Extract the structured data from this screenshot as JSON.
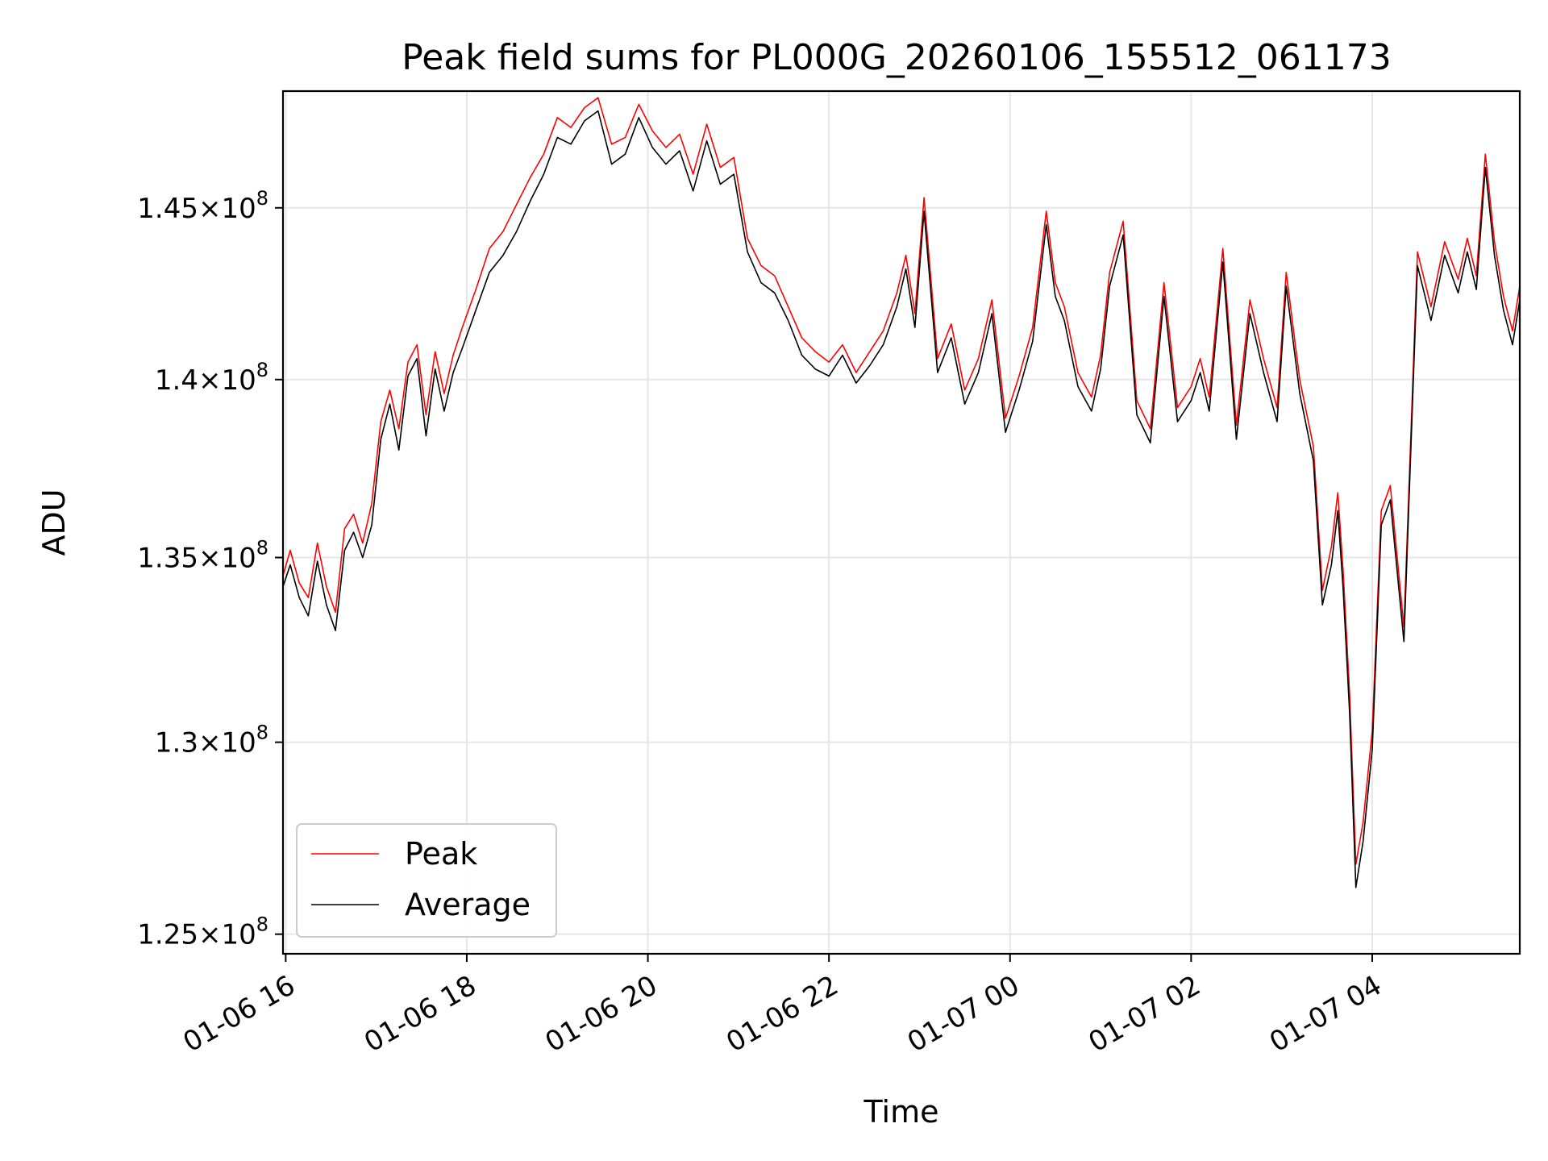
{
  "chart_data": {
    "type": "line",
    "title": "Peak field sums for PL000G_20260106_155512_061173",
    "xlabel": "Time",
    "ylabel": "ADU",
    "x_range_hours": [
      15.97,
      29.63
    ],
    "ylim": [
      124500000,
      148500000
    ],
    "y_scale": "log",
    "x_ticks": [
      {
        "hour": 16,
        "label": "01-06 16"
      },
      {
        "hour": 18,
        "label": "01-06 18"
      },
      {
        "hour": 20,
        "label": "01-06 20"
      },
      {
        "hour": 22,
        "label": "01-06 22"
      },
      {
        "hour": 24,
        "label": "01-07 00"
      },
      {
        "hour": 26,
        "label": "01-07 02"
      },
      {
        "hour": 28,
        "label": "01-07 04"
      }
    ],
    "y_ticks": [
      {
        "value": 125000000,
        "mantissa": "1.25",
        "exp": "8"
      },
      {
        "value": 130000000,
        "mantissa": "1.3",
        "exp": "8"
      },
      {
        "value": 135000000,
        "mantissa": "1.35",
        "exp": "8"
      },
      {
        "value": 140000000,
        "mantissa": "1.4",
        "exp": "8"
      },
      {
        "value": 145000000,
        "mantissa": "1.45",
        "exp": "8"
      }
    ],
    "grid": true,
    "legend_position": "lower-left",
    "series": [
      {
        "name": "Peak",
        "color": "#ff0000",
        "x_hours": [
          15.97,
          16.05,
          16.15,
          16.25,
          16.35,
          16.45,
          16.55,
          16.65,
          16.75,
          16.85,
          16.95,
          17.05,
          17.15,
          17.25,
          17.35,
          17.45,
          17.55,
          17.65,
          17.75,
          17.85,
          17.95,
          18.1,
          18.25,
          18.4,
          18.55,
          18.7,
          18.85,
          19.0,
          19.15,
          19.3,
          19.45,
          19.6,
          19.75,
          19.9,
          20.05,
          20.2,
          20.35,
          20.5,
          20.65,
          20.8,
          20.95,
          21.1,
          21.25,
          21.4,
          21.55,
          21.7,
          21.85,
          22.0,
          22.15,
          22.3,
          22.45,
          22.6,
          22.75,
          22.85,
          22.95,
          23.05,
          23.2,
          23.35,
          23.5,
          23.65,
          23.8,
          23.95,
          24.1,
          24.25,
          24.4,
          24.5,
          24.6,
          24.75,
          24.9,
          25.0,
          25.1,
          25.25,
          25.4,
          25.55,
          25.7,
          25.85,
          26.0,
          26.1,
          26.2,
          26.35,
          26.5,
          26.65,
          26.8,
          26.95,
          27.05,
          27.2,
          27.35,
          27.45,
          27.55,
          27.62,
          27.68,
          27.75,
          27.82,
          27.9,
          28.0,
          28.1,
          28.2,
          28.35,
          28.5,
          28.65,
          28.8,
          28.95,
          29.05,
          29.15,
          29.25,
          29.35,
          29.45,
          29.55,
          29.63
        ],
        "values": [
          134500000,
          135200000,
          134300000,
          133900000,
          135400000,
          134200000,
          133500000,
          135800000,
          136200000,
          135400000,
          136500000,
          138800000,
          139700000,
          138600000,
          140500000,
          141000000,
          139000000,
          140800000,
          139600000,
          140700000,
          141500000,
          142600000,
          143800000,
          144300000,
          145100000,
          145900000,
          146600000,
          147700000,
          147400000,
          148000000,
          148300000,
          146900000,
          147100000,
          148100000,
          147300000,
          146800000,
          147200000,
          146000000,
          147500000,
          146200000,
          146500000,
          144100000,
          143300000,
          143000000,
          142100000,
          141200000,
          140800000,
          140500000,
          141000000,
          140200000,
          140800000,
          141400000,
          142500000,
          143600000,
          141900000,
          145300000,
          140600000,
          141600000,
          139700000,
          140600000,
          142300000,
          138900000,
          140100000,
          141500000,
          144900000,
          142800000,
          142100000,
          140200000,
          139500000,
          140700000,
          143100000,
          144600000,
          139400000,
          138600000,
          142800000,
          139200000,
          139800000,
          140600000,
          139500000,
          143800000,
          138700000,
          142300000,
          140600000,
          139200000,
          143100000,
          140000000,
          138100000,
          134100000,
          135300000,
          136800000,
          134600000,
          131300000,
          126800000,
          127900000,
          130300000,
          136300000,
          137000000,
          133100000,
          143700000,
          142100000,
          144000000,
          142900000,
          144100000,
          143000000,
          146600000,
          144000000,
          142400000,
          141400000,
          142700000
        ]
      },
      {
        "name": "Average",
        "color": "#000000",
        "x_hours": [
          15.97,
          16.05,
          16.15,
          16.25,
          16.35,
          16.45,
          16.55,
          16.65,
          16.75,
          16.85,
          16.95,
          17.05,
          17.15,
          17.25,
          17.35,
          17.45,
          17.55,
          17.65,
          17.75,
          17.85,
          17.95,
          18.1,
          18.25,
          18.4,
          18.55,
          18.7,
          18.85,
          19.0,
          19.15,
          19.3,
          19.45,
          19.6,
          19.75,
          19.9,
          20.05,
          20.2,
          20.35,
          20.5,
          20.65,
          20.8,
          20.95,
          21.1,
          21.25,
          21.4,
          21.55,
          21.7,
          21.85,
          22.0,
          22.15,
          22.3,
          22.45,
          22.6,
          22.75,
          22.85,
          22.95,
          23.05,
          23.2,
          23.35,
          23.5,
          23.65,
          23.8,
          23.95,
          24.1,
          24.25,
          24.4,
          24.5,
          24.6,
          24.75,
          24.9,
          25.0,
          25.1,
          25.25,
          25.4,
          25.55,
          25.7,
          25.85,
          26.0,
          26.1,
          26.2,
          26.35,
          26.5,
          26.65,
          26.8,
          26.95,
          27.05,
          27.2,
          27.35,
          27.45,
          27.55,
          27.62,
          27.68,
          27.75,
          27.82,
          27.9,
          28.0,
          28.1,
          28.2,
          28.35,
          28.5,
          28.65,
          28.8,
          28.95,
          29.05,
          29.15,
          29.25,
          29.35,
          29.45,
          29.55,
          29.63
        ],
        "values": [
          134200000,
          134800000,
          133900000,
          133400000,
          134900000,
          133700000,
          133000000,
          135200000,
          135700000,
          135000000,
          135900000,
          138300000,
          139300000,
          138000000,
          140100000,
          140600000,
          138400000,
          140300000,
          139100000,
          140200000,
          140900000,
          142000000,
          143100000,
          143600000,
          144300000,
          145200000,
          146000000,
          147100000,
          146900000,
          147600000,
          147900000,
          146300000,
          146600000,
          147700000,
          146800000,
          146300000,
          146700000,
          145500000,
          147000000,
          145700000,
          146000000,
          143700000,
          142800000,
          142500000,
          141700000,
          140700000,
          140300000,
          140100000,
          140700000,
          139900000,
          140400000,
          141000000,
          142100000,
          143200000,
          141500000,
          144900000,
          140200000,
          141200000,
          139300000,
          140200000,
          141900000,
          138500000,
          139700000,
          141100000,
          144500000,
          142400000,
          141700000,
          139800000,
          139100000,
          140300000,
          142700000,
          144200000,
          139000000,
          138200000,
          142400000,
          138800000,
          139400000,
          140200000,
          139100000,
          143400000,
          138300000,
          141900000,
          140200000,
          138800000,
          142700000,
          139600000,
          137700000,
          133700000,
          134800000,
          136300000,
          134100000,
          130800000,
          126200000,
          127400000,
          129800000,
          135900000,
          136600000,
          132700000,
          143300000,
          141700000,
          143600000,
          142500000,
          143700000,
          142600000,
          146200000,
          143600000,
          142000000,
          141000000,
          142300000
        ]
      }
    ]
  }
}
